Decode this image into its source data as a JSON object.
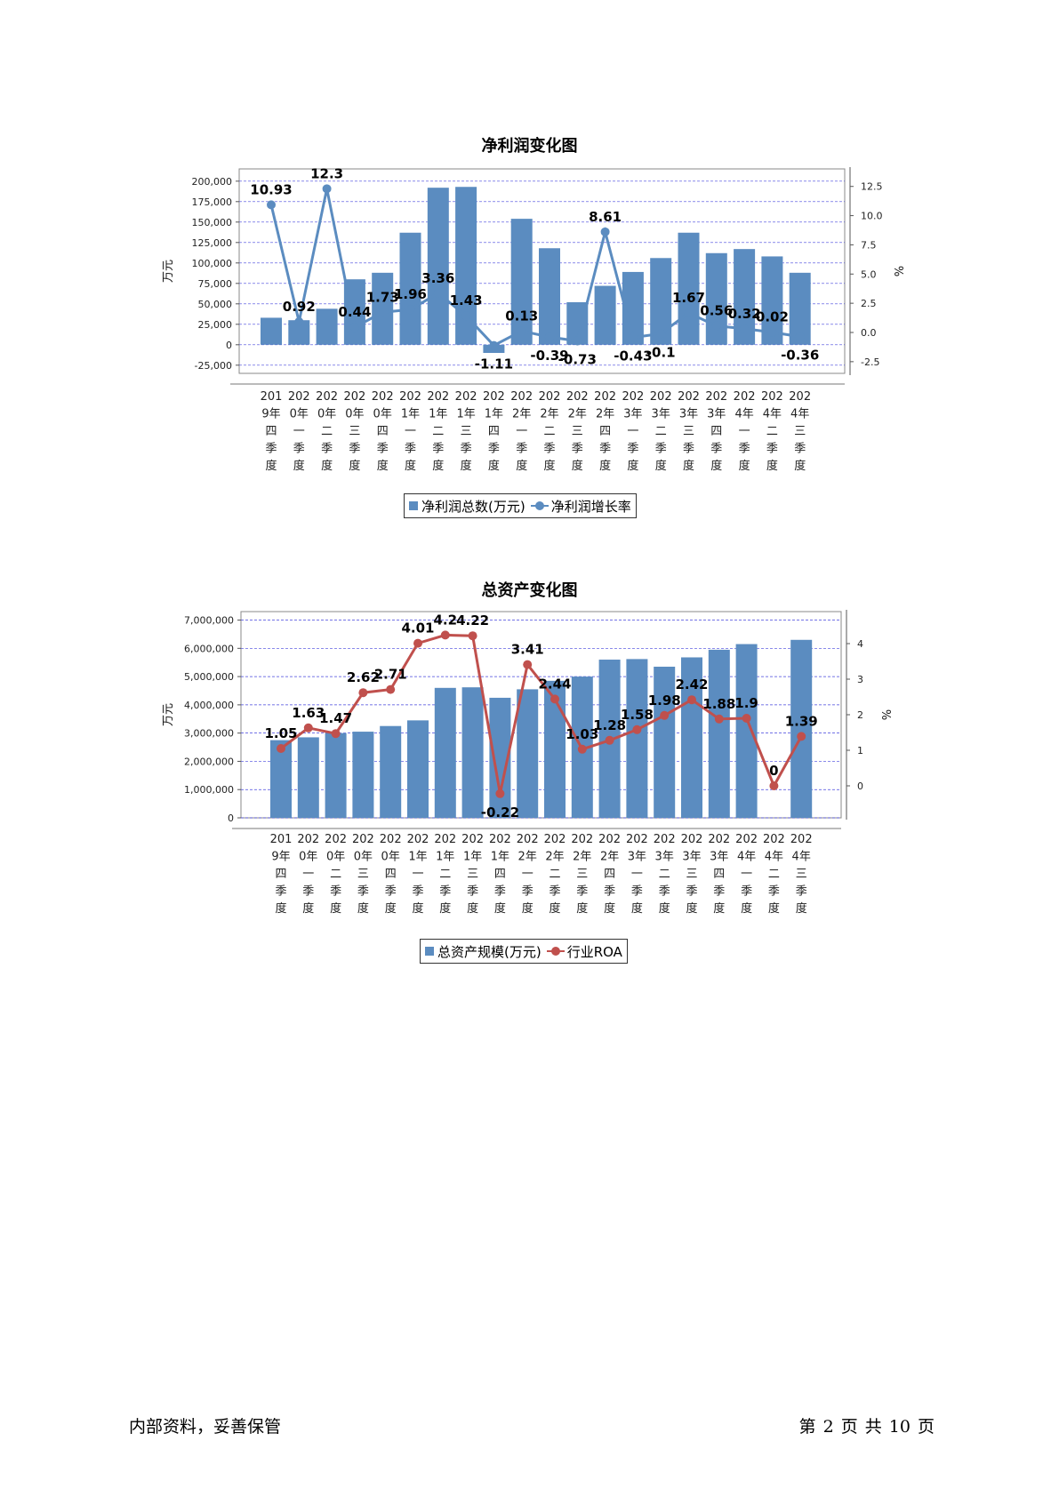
{
  "charts": [
    {
      "title": "净利润变化图",
      "ylabel_left": "万元",
      "ylabel_right": "%",
      "legend": {
        "bar": "净利润总数(万元)",
        "line": "净利润增长率"
      },
      "colors": {
        "bar": "#5b8cc0",
        "line": "#5b8cc0",
        "grid": "#4444dd"
      },
      "left_ticks": [
        "-25,000",
        "0",
        "25,000",
        "50,000",
        "75,000",
        "100,000",
        "125,000",
        "150,000",
        "175,000",
        "200,000"
      ],
      "right_ticks": [
        "-2.5",
        "0.0",
        "2.5",
        "5.0",
        "7.5",
        "10.0",
        "12.5"
      ]
    },
    {
      "title": "总资产变化图",
      "ylabel_left": "万元",
      "ylabel_right": "%",
      "legend": {
        "bar": "总资产规模(万元)",
        "line": "行业ROA"
      },
      "colors": {
        "bar": "#5b8cc0",
        "line": "#c0504d",
        "grid": "#4444dd"
      },
      "left_ticks": [
        "0",
        "1,000,000",
        "2,000,000",
        "3,000,000",
        "4,000,000",
        "5,000,000",
        "6,000,000",
        "7,000,000"
      ],
      "right_ticks": [
        "0",
        "1",
        "2",
        "3",
        "4"
      ]
    }
  ],
  "chart_data": [
    {
      "type": "bar",
      "title": "净利润变化图",
      "ylabel": "万元",
      "y2label": "%",
      "ylim": [
        -35000,
        215000
      ],
      "y2lim": [
        -3.5,
        14.0
      ],
      "grid": true,
      "legend_position": "bottom",
      "categories": [
        "2019年四季度",
        "2020年一季度",
        "2020年二季度",
        "2020年三季度",
        "2020年四季度",
        "2021年一季度",
        "2021年二季度",
        "2021年三季度",
        "2021年四季度",
        "2022年一季度",
        "2022年二季度",
        "2022年三季度",
        "2022年四季度",
        "2023年一季度",
        "2023年二季度",
        "2023年三季度",
        "2023年四季度",
        "2024年一季度",
        "2024年二季度",
        "2024年三季度"
      ],
      "series": [
        {
          "name": "净利润总数(万元)",
          "type": "bar",
          "axis": "left",
          "values": [
            33000,
            30000,
            44000,
            80000,
            88000,
            137000,
            192000,
            193000,
            -10000,
            154000,
            118000,
            52000,
            72000,
            89000,
            106000,
            137000,
            112000,
            117000,
            108000,
            88000
          ]
        },
        {
          "name": "净利润增长率",
          "type": "line",
          "axis": "right",
          "values": [
            10.93,
            0.92,
            12.3,
            0.44,
            1.73,
            1.96,
            3.36,
            1.43,
            -1.11,
            0.13,
            -0.39,
            -0.73,
            8.61,
            -0.43,
            -0.1,
            1.67,
            0.56,
            0.32,
            0.02,
            -0.36
          ],
          "labels": [
            "10.93",
            "0.92",
            "12.3",
            "0.44",
            "1.73",
            "1.96",
            "3.36",
            "1.43",
            "-1.11",
            "0.13",
            "-0.39",
            "-0.73",
            "8.61",
            "-0.43",
            "-0.1",
            "1.67",
            "0.56",
            "0.32",
            "0.02",
            "-0.36"
          ]
        }
      ]
    },
    {
      "type": "bar",
      "title": "总资产变化图",
      "ylabel": "万元",
      "y2label": "%",
      "ylim": [
        0,
        7300000
      ],
      "y2lim": [
        -0.9,
        4.9
      ],
      "grid": true,
      "legend_position": "bottom",
      "categories": [
        "2019年四季度",
        "2020年一季度",
        "2020年二季度",
        "2020年三季度",
        "2020年四季度",
        "2021年一季度",
        "2021年二季度",
        "2021年三季度",
        "2021年四季度",
        "2022年一季度",
        "2022年二季度",
        "2022年三季度",
        "2022年四季度",
        "2023年一季度",
        "2023年二季度",
        "2023年三季度",
        "2023年四季度",
        "2024年一季度",
        "2024年二季度",
        "2024年三季度"
      ],
      "series": [
        {
          "name": "总资产规模(万元)",
          "type": "bar",
          "axis": "left",
          "values": [
            2750000,
            2850000,
            3000000,
            3050000,
            3250000,
            3450000,
            4600000,
            4620000,
            4250000,
            4550000,
            4850000,
            5000000,
            5600000,
            5620000,
            5350000,
            5680000,
            5950000,
            6150000,
            0,
            6300000
          ]
        },
        {
          "name": "行业ROA",
          "type": "line",
          "axis": "right",
          "values": [
            1.05,
            1.63,
            1.47,
            2.62,
            2.71,
            4.01,
            4.24,
            4.22,
            -0.22,
            3.41,
            2.44,
            1.03,
            1.28,
            1.58,
            1.98,
            2.42,
            1.88,
            1.9,
            0,
            1.39
          ],
          "labels": [
            "1.05",
            "1.63",
            "1.47",
            "2.62",
            "2.71",
            "4.01",
            "4.2",
            "4.22",
            "-0.22",
            "3.41",
            "2.44",
            "1.03",
            "1.28",
            "1.58",
            "1.98",
            "2.42",
            "1.88",
            "1.9",
            "0",
            "1.39"
          ]
        }
      ]
    }
  ],
  "footer": {
    "left": "内部资料，妥善保管",
    "right": "第 2 页   共 10 页"
  }
}
